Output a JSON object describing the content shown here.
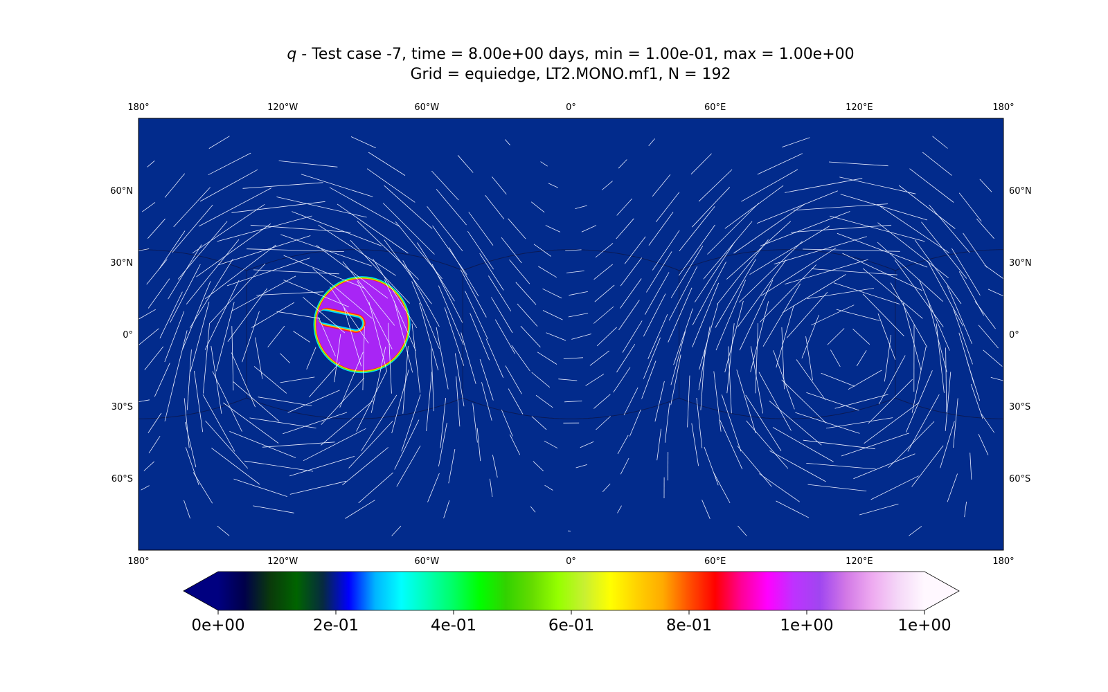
{
  "chart_data": {
    "type": "heatmap",
    "title": {
      "variable": "q",
      "line1_rest": " - Test case -7, time = 8.00e+00 days, min = 1.00e-01, max = 1.00e+00",
      "line2": "Grid = equiedge, LT2.MONO.mf1, N = 192"
    },
    "projection": "plate-carree",
    "x_range_deg": [
      -180,
      180
    ],
    "y_range_deg": [
      -90,
      90
    ],
    "x_ticks": [
      {
        "value": -180,
        "label": "180°"
      },
      {
        "value": -120,
        "label": "120°W"
      },
      {
        "value": -60,
        "label": "60°W"
      },
      {
        "value": 0,
        "label": "0°"
      },
      {
        "value": 60,
        "label": "60°E"
      },
      {
        "value": 120,
        "label": "120°E"
      },
      {
        "value": 180,
        "label": "180°"
      }
    ],
    "y_ticks": [
      {
        "value": 60,
        "label": "60°N"
      },
      {
        "value": 30,
        "label": "30°N"
      },
      {
        "value": 0,
        "label": "0°"
      },
      {
        "value": -30,
        "label": "30°S"
      },
      {
        "value": -60,
        "label": "60°S"
      }
    ],
    "background_value": 0.1,
    "background_color": "#022b8c",
    "tracer_shape": {
      "kind": "slotted-cylinder",
      "center_lon": -87,
      "center_lat": 4,
      "radius_deg": 19,
      "value": 1.0,
      "fill_color": "#a825f5",
      "slot": {
        "from_lon": -104,
        "to_lon": -87,
        "center_lat": 4,
        "half_width_deg": 2.5,
        "angle_deg": 12
      }
    },
    "wind_field": {
      "u0": 1.0,
      "note_hidden": false
    },
    "cubed_sphere_edges": true,
    "colorbar": {
      "vmin": 0.0,
      "vmax": 1.0,
      "extend": "both",
      "tick_values": [
        0.0,
        0.2,
        0.4,
        0.6,
        0.8,
        1.0,
        1.2
      ],
      "tick_labels": [
        "0e+00",
        "2e-01",
        "4e-01",
        "6e-01",
        "8e-01",
        "1e+00",
        "1e+00"
      ],
      "colors": [
        "#000080",
        "#00004a",
        "#0a3a0a",
        "#006400",
        "#062a40",
        "#0000ff",
        "#00b4ff",
        "#00ffff",
        "#00ffb4",
        "#00ff64",
        "#00ff00",
        "#32d200",
        "#64dc00",
        "#96ff00",
        "#c8f032",
        "#ffff00",
        "#ffd200",
        "#ffaa00",
        "#ff5000",
        "#ff0000",
        "#ff0096",
        "#ff00ff",
        "#be32ff",
        "#a046f0",
        "#d278e6",
        "#eeaaf0",
        "#f5d8f8",
        "#fff8ff"
      ]
    }
  }
}
